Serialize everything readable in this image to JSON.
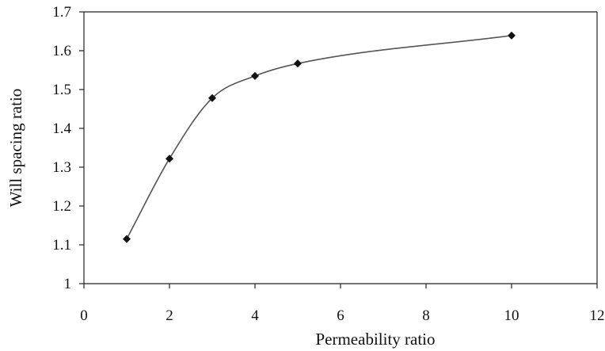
{
  "chart_data": {
    "type": "line",
    "title": "",
    "xlabel": "Permeability ratio",
    "ylabel": "Will spacing ratio",
    "xlim": [
      0,
      12
    ],
    "ylim": [
      1,
      1.7
    ],
    "xticks": [
      0,
      2,
      4,
      6,
      8,
      10,
      12
    ],
    "yticks": [
      1,
      1.1,
      1.2,
      1.3,
      1.4,
      1.5,
      1.6,
      1.7
    ],
    "xtick_labels": [
      "0",
      "2",
      "4",
      "6",
      "8",
      "10",
      "12"
    ],
    "ytick_labels": [
      "1",
      "1.1",
      "1.2",
      "1.3",
      "1.4",
      "1.5",
      "1.6",
      "1.7"
    ],
    "grid": false,
    "legend": "none",
    "marker": "diamond",
    "line_style": "smooth",
    "colors": {
      "line": "#555555",
      "marker": "#111111",
      "axis": "#222222"
    },
    "series": [
      {
        "x": [
          1,
          2,
          3,
          4,
          5,
          10
        ],
        "y": [
          1.115,
          1.322,
          1.478,
          1.535,
          1.567,
          1.639
        ]
      }
    ]
  }
}
